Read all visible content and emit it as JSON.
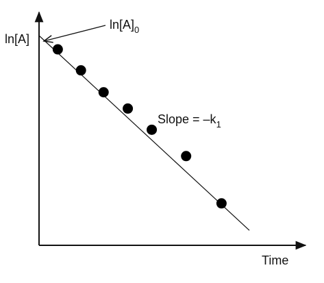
{
  "chart_data": {
    "type": "scatter",
    "xlabel": "Time",
    "ylabel": "ln[A]",
    "grid": false,
    "ticks": false,
    "xlim": [
      0,
      10
    ],
    "ylim": [
      0,
      10
    ],
    "points": [
      {
        "x": 0.72,
        "y": 8.41
      },
      {
        "x": 1.61,
        "y": 7.51
      },
      {
        "x": 2.48,
        "y": 6.57
      },
      {
        "x": 3.41,
        "y": 5.87
      },
      {
        "x": 4.33,
        "y": 4.96
      },
      {
        "x": 5.65,
        "y": 3.83
      },
      {
        "x": 7.01,
        "y": 1.8
      }
    ],
    "fit_line": {
      "x": [
        0.0,
        8.08
      ],
      "y": [
        9.0,
        0.64
      ]
    },
    "annotations": [
      {
        "text_main": "ln[A]",
        "text_sub": "0",
        "points_to": "y-intercept"
      },
      {
        "text_main": "Slope = –k",
        "text_sub": "1"
      }
    ]
  }
}
